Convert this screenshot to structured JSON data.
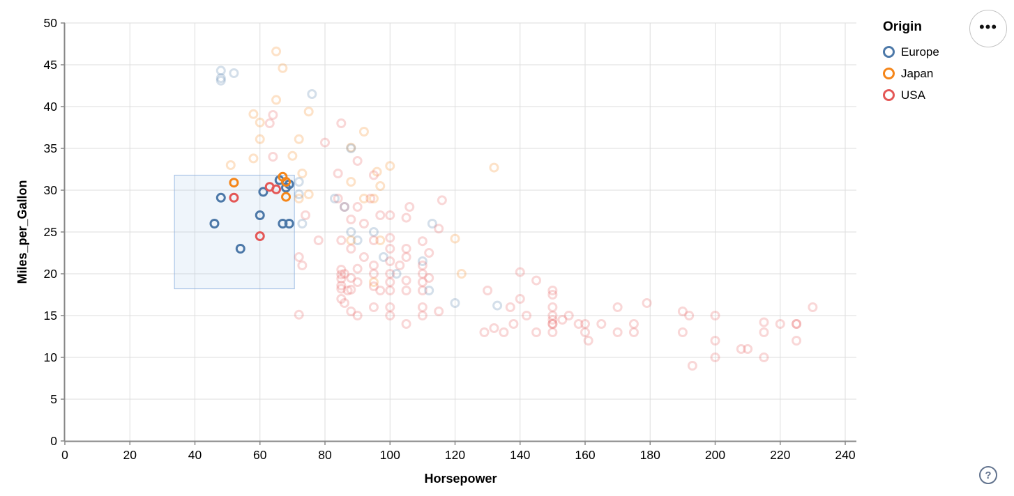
{
  "chart_data": {
    "type": "scatter",
    "xlabel": "Horsepower",
    "ylabel": "Miles_per_Gallon",
    "xlim": [
      0,
      243
    ],
    "ylim": [
      0,
      50
    ],
    "x_ticks": [
      0,
      20,
      40,
      60,
      80,
      100,
      120,
      140,
      160,
      180,
      200,
      220,
      240
    ],
    "y_ticks": [
      0,
      5,
      10,
      15,
      20,
      25,
      30,
      35,
      40,
      45,
      50
    ],
    "grid": true,
    "legend": {
      "title": "Origin",
      "position": "top-right",
      "entries": [
        {
          "label": "Europe",
          "color": "#4c78a8",
          "key": "E"
        },
        {
          "label": "Japan",
          "color": "#f58518",
          "key": "J"
        },
        {
          "label": "USA",
          "color": "#e45756",
          "key": "U"
        }
      ]
    },
    "brush_selection": {
      "x": [
        33.7,
        70.6
      ],
      "y": [
        18.2,
        31.8
      ]
    },
    "style": {
      "point_radius": 5.5,
      "point_stroke_width": 3,
      "selected_opacity": 1,
      "faded_opacity": 0.24,
      "grid_color": "#dddddd",
      "axis_color": "#888888",
      "brush_fill": "rgba(125,169,220,0.12)",
      "brush_stroke": "rgba(137,174,221,0.8)"
    },
    "point_format": [
      "horsepower",
      "mpg",
      "origin",
      "selected"
    ],
    "points": [
      [
        46,
        26,
        "E",
        1
      ],
      [
        48,
        29.1,
        "E",
        1
      ],
      [
        54,
        23,
        "E",
        1
      ],
      [
        60,
        27,
        "E",
        1
      ],
      [
        61,
        29.8,
        "E",
        1
      ],
      [
        66,
        31.2,
        "E",
        1
      ],
      [
        68,
        30.3,
        "E",
        1
      ],
      [
        69,
        30.7,
        "E",
        1
      ],
      [
        67,
        26,
        "E",
        1
      ],
      [
        69,
        26,
        "E",
        1
      ],
      [
        52,
        30.9,
        "J",
        1
      ],
      [
        67,
        31.6,
        "J",
        1
      ],
      [
        68,
        31,
        "J",
        1
      ],
      [
        68,
        29.2,
        "J",
        1
      ],
      [
        52,
        29.1,
        "U",
        1
      ],
      [
        60,
        24.5,
        "U",
        1
      ],
      [
        63,
        30.4,
        "U",
        1
      ],
      [
        65,
        30.1,
        "U",
        1
      ],
      [
        65,
        46.6,
        "J",
        0
      ],
      [
        67,
        44.6,
        "J",
        0
      ],
      [
        65,
        40.8,
        "J",
        0
      ],
      [
        58,
        39.1,
        "J",
        0
      ],
      [
        75,
        39.4,
        "J",
        0
      ],
      [
        60,
        38.1,
        "J",
        0
      ],
      [
        92,
        37,
        "J",
        0
      ],
      [
        48,
        44.3,
        "E",
        0
      ],
      [
        52,
        44,
        "E",
        0
      ],
      [
        48,
        43.4,
        "E",
        0
      ],
      [
        48,
        43.1,
        "E",
        0
      ],
      [
        76,
        41.5,
        "E",
        0
      ],
      [
        85,
        38,
        "U",
        0
      ],
      [
        63,
        38,
        "U",
        0
      ],
      [
        64,
        39,
        "U",
        0
      ],
      [
        80,
        35.7,
        "U",
        0
      ],
      [
        60,
        36.1,
        "J",
        0
      ],
      [
        58,
        33.8,
        "J",
        0
      ],
      [
        70,
        34.1,
        "J",
        0
      ],
      [
        51,
        33,
        "J",
        0
      ],
      [
        100,
        32.9,
        "J",
        0
      ],
      [
        96,
        32.2,
        "J",
        0
      ],
      [
        88,
        35.1,
        "J",
        0
      ],
      [
        72,
        36.1,
        "J",
        0
      ],
      [
        132,
        32.7,
        "J",
        0
      ],
      [
        73,
        32,
        "J",
        0
      ],
      [
        88,
        35,
        "E",
        0
      ],
      [
        72,
        31,
        "E",
        0
      ],
      [
        72,
        29.5,
        "E",
        0
      ],
      [
        90,
        33.5,
        "U",
        0
      ],
      [
        64,
        34,
        "U",
        0
      ],
      [
        84,
        32,
        "U",
        0
      ],
      [
        95,
        31.8,
        "U",
        0
      ],
      [
        84,
        29,
        "U",
        0
      ],
      [
        86,
        28,
        "U",
        0
      ],
      [
        92,
        26,
        "U",
        0
      ],
      [
        90,
        28,
        "U",
        0
      ],
      [
        97,
        27,
        "U",
        0
      ],
      [
        106,
        28,
        "U",
        0
      ],
      [
        105,
        26.7,
        "U",
        0
      ],
      [
        116,
        28.8,
        "U",
        0
      ],
      [
        100,
        27,
        "U",
        0
      ],
      [
        74,
        27,
        "U",
        0
      ],
      [
        88,
        26.5,
        "U",
        0
      ],
      [
        94,
        29,
        "U",
        0
      ],
      [
        83,
        29,
        "E",
        0
      ],
      [
        86,
        28,
        "E",
        0
      ],
      [
        113,
        26,
        "E",
        0
      ],
      [
        73,
        26,
        "E",
        0
      ],
      [
        75,
        29.5,
        "J",
        0
      ],
      [
        92,
        29,
        "J",
        0
      ],
      [
        97,
        30.5,
        "J",
        0
      ],
      [
        95,
        29,
        "J",
        0
      ],
      [
        88,
        31,
        "J",
        0
      ],
      [
        72,
        29,
        "J",
        0
      ],
      [
        90,
        24,
        "E",
        0
      ],
      [
        95,
        25,
        "E",
        0
      ],
      [
        98,
        22,
        "E",
        0
      ],
      [
        88,
        25,
        "E",
        0
      ],
      [
        110,
        21.5,
        "E",
        0
      ],
      [
        120,
        24.2,
        "J",
        0
      ],
      [
        97,
        24,
        "J",
        0
      ],
      [
        88,
        24,
        "J",
        0
      ],
      [
        95,
        24,
        "U",
        0
      ],
      [
        100,
        23,
        "U",
        0
      ],
      [
        105,
        22,
        "U",
        0
      ],
      [
        110,
        21,
        "U",
        0
      ],
      [
        100,
        21.5,
        "U",
        0
      ],
      [
        105,
        23,
        "U",
        0
      ],
      [
        88,
        23,
        "U",
        0
      ],
      [
        92,
        22,
        "U",
        0
      ],
      [
        112,
        22.5,
        "U",
        0
      ],
      [
        110,
        23.9,
        "U",
        0
      ],
      [
        95,
        21,
        "U",
        0
      ],
      [
        85,
        24,
        "U",
        0
      ],
      [
        100,
        24.3,
        "U",
        0
      ],
      [
        115,
        25.4,
        "U",
        0
      ],
      [
        103,
        21,
        "U",
        0
      ],
      [
        72,
        22,
        "U",
        0
      ],
      [
        73,
        21,
        "U",
        0
      ],
      [
        78,
        24,
        "U",
        0
      ],
      [
        85,
        20.5,
        "U",
        0
      ],
      [
        85,
        19.9,
        "U",
        0
      ],
      [
        85,
        19.4,
        "U",
        0
      ],
      [
        85,
        18.6,
        "U",
        0
      ],
      [
        85,
        18.2,
        "U",
        0
      ],
      [
        85,
        17,
        "U",
        0
      ],
      [
        86,
        20,
        "U",
        0
      ],
      [
        87,
        18,
        "U",
        0
      ],
      [
        88,
        19.5,
        "U",
        0
      ],
      [
        88,
        18.1,
        "U",
        0
      ],
      [
        90,
        20.6,
        "U",
        0
      ],
      [
        90,
        19,
        "U",
        0
      ],
      [
        95,
        20,
        "U",
        0
      ],
      [
        95,
        18.5,
        "U",
        0
      ],
      [
        97,
        18,
        "U",
        0
      ],
      [
        100,
        20,
        "U",
        0
      ],
      [
        100,
        19,
        "U",
        0
      ],
      [
        100,
        18,
        "U",
        0
      ],
      [
        105,
        19.2,
        "U",
        0
      ],
      [
        105,
        18,
        "U",
        0
      ],
      [
        110,
        20,
        "U",
        0
      ],
      [
        110,
        19,
        "U",
        0
      ],
      [
        110,
        18,
        "U",
        0
      ],
      [
        112,
        19.5,
        "U",
        0
      ],
      [
        95,
        19,
        "J",
        0
      ],
      [
        122,
        20,
        "J",
        0
      ],
      [
        112,
        18,
        "E",
        0
      ],
      [
        102,
        20,
        "E",
        0
      ],
      [
        86,
        16.5,
        "U",
        0
      ],
      [
        88,
        15.5,
        "U",
        0
      ],
      [
        95,
        16,
        "U",
        0
      ],
      [
        100,
        16,
        "U",
        0
      ],
      [
        100,
        15,
        "U",
        0
      ],
      [
        105,
        14,
        "U",
        0
      ],
      [
        110,
        16,
        "U",
        0
      ],
      [
        110,
        15,
        "U",
        0
      ],
      [
        115,
        15.5,
        "U",
        0
      ],
      [
        72,
        15.1,
        "U",
        0
      ],
      [
        90,
        15,
        "U",
        0
      ],
      [
        130,
        18,
        "U",
        0
      ],
      [
        140,
        17,
        "U",
        0
      ],
      [
        140,
        20.2,
        "U",
        0
      ],
      [
        145,
        19.2,
        "U",
        0
      ],
      [
        150,
        18,
        "U",
        0
      ],
      [
        150,
        17.5,
        "U",
        0
      ],
      [
        150,
        16,
        "U",
        0
      ],
      [
        150,
        15,
        "U",
        0
      ],
      [
        150,
        14.5,
        "U",
        0
      ],
      [
        150,
        14,
        "U",
        0
      ],
      [
        150,
        14,
        "U",
        0
      ],
      [
        150,
        13,
        "U",
        0
      ],
      [
        145,
        13,
        "U",
        0
      ],
      [
        137,
        16,
        "U",
        0
      ],
      [
        142,
        15,
        "U",
        0
      ],
      [
        129,
        13,
        "U",
        0
      ],
      [
        132,
        13.5,
        "U",
        0
      ],
      [
        135,
        13,
        "U",
        0
      ],
      [
        153,
        14.5,
        "U",
        0
      ],
      [
        155,
        15,
        "U",
        0
      ],
      [
        158,
        14,
        "U",
        0
      ],
      [
        160,
        14,
        "U",
        0
      ],
      [
        160,
        13,
        "U",
        0
      ],
      [
        165,
        14,
        "U",
        0
      ],
      [
        161,
        12,
        "U",
        0
      ],
      [
        170,
        16,
        "U",
        0
      ],
      [
        170,
        13,
        "U",
        0
      ],
      [
        175,
        14,
        "U",
        0
      ],
      [
        179,
        16.5,
        "U",
        0
      ],
      [
        175,
        13,
        "U",
        0
      ],
      [
        138,
        14,
        "U",
        0
      ],
      [
        120,
        16.5,
        "E",
        0
      ],
      [
        133,
        16.2,
        "E",
        0
      ],
      [
        190,
        15.5,
        "U",
        0
      ],
      [
        192,
        15,
        "U",
        0
      ],
      [
        190,
        13,
        "U",
        0
      ],
      [
        200,
        15,
        "U",
        0
      ],
      [
        200,
        12,
        "U",
        0
      ],
      [
        200,
        10,
        "U",
        0
      ],
      [
        193,
        9,
        "U",
        0
      ],
      [
        208,
        11,
        "U",
        0
      ],
      [
        210,
        11,
        "U",
        0
      ],
      [
        215,
        14.2,
        "U",
        0
      ],
      [
        215,
        13,
        "U",
        0
      ],
      [
        215,
        10,
        "U",
        0
      ],
      [
        220,
        14,
        "U",
        0
      ],
      [
        225,
        14,
        "U",
        0
      ],
      [
        225,
        14,
        "U",
        0
      ],
      [
        225,
        12,
        "U",
        0
      ],
      [
        230,
        16,
        "U",
        0
      ]
    ]
  },
  "ui": {
    "ellipsis_icon": "•••",
    "help_icon": "?"
  }
}
